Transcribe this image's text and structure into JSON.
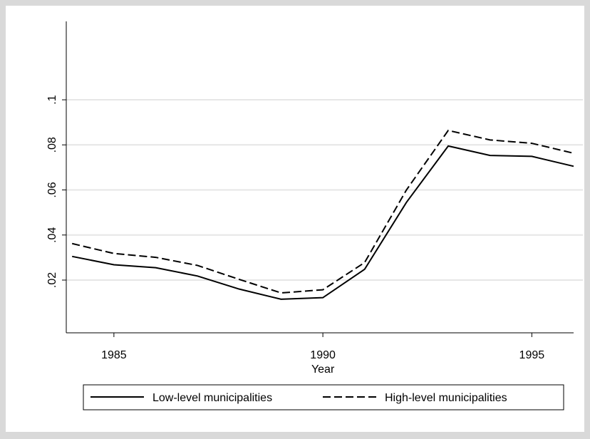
{
  "chart_data": {
    "type": "line",
    "x": [
      1984,
      1985,
      1986,
      1987,
      1988,
      1989,
      1990,
      1991,
      1992,
      1993,
      1994,
      1995,
      1996
    ],
    "series": [
      {
        "name": "Low-level municipalities",
        "color": "#000000",
        "dash": "solid",
        "values": [
          0.0305,
          0.0268,
          0.0255,
          0.0218,
          0.016,
          0.0115,
          0.0122,
          0.0248,
          0.0545,
          0.0795,
          0.0753,
          0.0749,
          0.0705
        ]
      },
      {
        "name": "High-level municipalities",
        "color": "#000000",
        "dash": "dashed",
        "values": [
          0.0362,
          0.0318,
          0.0301,
          0.0265,
          0.0203,
          0.0143,
          0.0157,
          0.0278,
          0.06,
          0.0864,
          0.0822,
          0.0807,
          0.0763
        ]
      }
    ],
    "xlabel": "Year",
    "xlim": [
      1983.86,
      1996
    ],
    "xticks": [
      1985,
      1990,
      1995
    ],
    "ylim": [
      -0.0034,
      0.1348
    ],
    "yticks": [
      {
        "value": 0.02,
        "label": ".02"
      },
      {
        "value": 0.04,
        "label": ".04"
      },
      {
        "value": 0.06,
        "label": ".06"
      },
      {
        "value": 0.08,
        "label": ".08"
      },
      {
        "value": 0.1,
        "label": ".1"
      }
    ],
    "grid": true,
    "legend": "bottom"
  }
}
